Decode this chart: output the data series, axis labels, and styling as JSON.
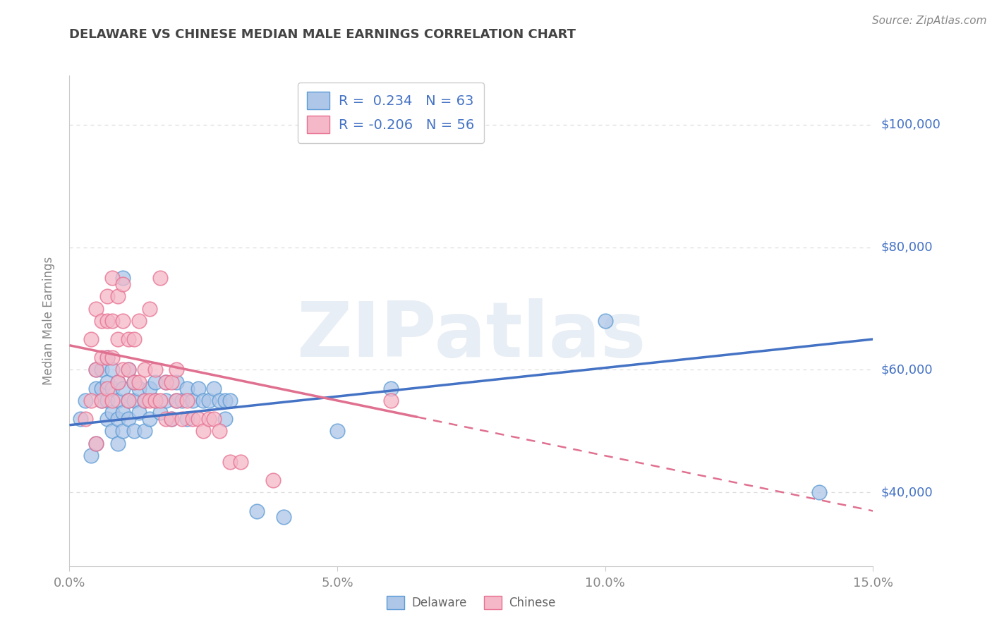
{
  "title": "DELAWARE VS CHINESE MEDIAN MALE EARNINGS CORRELATION CHART",
  "source": "Source: ZipAtlas.com",
  "ylabel": "Median Male Earnings",
  "xlim": [
    0.0,
    0.15
  ],
  "ylim": [
    28000,
    108000
  ],
  "xticks": [
    0.0,
    0.05,
    0.1,
    0.15
  ],
  "xticklabels": [
    "0.0%",
    "5.0%",
    "10.0%",
    "15.0%"
  ],
  "yticks": [
    40000,
    60000,
    80000,
    100000
  ],
  "yticklabels": [
    "$40,000",
    "$60,000",
    "$80,000",
    "$100,000"
  ],
  "delaware_R": 0.234,
  "delaware_N": 63,
  "chinese_R": -0.206,
  "chinese_N": 56,
  "blue_fill": "#aec6e8",
  "blue_edge": "#5b9bd5",
  "pink_fill": "#f4b8c8",
  "pink_edge": "#e87090",
  "blue_line_color": "#4472c4",
  "pink_line_color": "#e07090",
  "legend_text_color": "#4472c4",
  "watermark": "ZIPatlas",
  "watermark_color": "#e8eef5",
  "title_color": "#444444",
  "tick_color": "#888888",
  "grid_color": "#dddddd",
  "source_color": "#888888",
  "blue_line_y0": 51000,
  "blue_line_y1": 65000,
  "pink_line_y0": 64000,
  "pink_line_y1": 37000,
  "pink_dash_split": 0.065,
  "delaware_points": [
    [
      0.002,
      52000
    ],
    [
      0.003,
      55000
    ],
    [
      0.004,
      46000
    ],
    [
      0.005,
      48000
    ],
    [
      0.005,
      57000
    ],
    [
      0.005,
      60000
    ],
    [
      0.006,
      55000
    ],
    [
      0.006,
      57000
    ],
    [
      0.006,
      60000
    ],
    [
      0.007,
      52000
    ],
    [
      0.007,
      55000
    ],
    [
      0.007,
      58000
    ],
    [
      0.007,
      62000
    ],
    [
      0.008,
      50000
    ],
    [
      0.008,
      53000
    ],
    [
      0.008,
      57000
    ],
    [
      0.008,
      60000
    ],
    [
      0.009,
      48000
    ],
    [
      0.009,
      52000
    ],
    [
      0.009,
      55000
    ],
    [
      0.009,
      58000
    ],
    [
      0.01,
      50000
    ],
    [
      0.01,
      53000
    ],
    [
      0.01,
      57000
    ],
    [
      0.01,
      75000
    ],
    [
      0.011,
      52000
    ],
    [
      0.011,
      55000
    ],
    [
      0.011,
      60000
    ],
    [
      0.012,
      50000
    ],
    [
      0.012,
      55000
    ],
    [
      0.012,
      58000
    ],
    [
      0.013,
      53000
    ],
    [
      0.013,
      57000
    ],
    [
      0.014,
      50000
    ],
    [
      0.014,
      55000
    ],
    [
      0.015,
      52000
    ],
    [
      0.015,
      57000
    ],
    [
      0.016,
      55000
    ],
    [
      0.016,
      58000
    ],
    [
      0.017,
      53000
    ],
    [
      0.018,
      55000
    ],
    [
      0.018,
      58000
    ],
    [
      0.019,
      52000
    ],
    [
      0.02,
      55000
    ],
    [
      0.02,
      58000
    ],
    [
      0.021,
      55000
    ],
    [
      0.022,
      52000
    ],
    [
      0.022,
      57000
    ],
    [
      0.023,
      55000
    ],
    [
      0.024,
      57000
    ],
    [
      0.025,
      55000
    ],
    [
      0.026,
      55000
    ],
    [
      0.027,
      57000
    ],
    [
      0.028,
      55000
    ],
    [
      0.029,
      52000
    ],
    [
      0.029,
      55000
    ],
    [
      0.03,
      55000
    ],
    [
      0.035,
      37000
    ],
    [
      0.04,
      36000
    ],
    [
      0.05,
      50000
    ],
    [
      0.06,
      57000
    ],
    [
      0.1,
      68000
    ],
    [
      0.14,
      40000
    ]
  ],
  "chinese_points": [
    [
      0.003,
      52000
    ],
    [
      0.004,
      55000
    ],
    [
      0.004,
      65000
    ],
    [
      0.005,
      48000
    ],
    [
      0.005,
      60000
    ],
    [
      0.005,
      70000
    ],
    [
      0.006,
      55000
    ],
    [
      0.006,
      62000
    ],
    [
      0.006,
      68000
    ],
    [
      0.007,
      57000
    ],
    [
      0.007,
      62000
    ],
    [
      0.007,
      68000
    ],
    [
      0.007,
      72000
    ],
    [
      0.008,
      55000
    ],
    [
      0.008,
      62000
    ],
    [
      0.008,
      68000
    ],
    [
      0.008,
      75000
    ],
    [
      0.009,
      58000
    ],
    [
      0.009,
      65000
    ],
    [
      0.009,
      72000
    ],
    [
      0.01,
      60000
    ],
    [
      0.01,
      68000
    ],
    [
      0.01,
      74000
    ],
    [
      0.011,
      55000
    ],
    [
      0.011,
      60000
    ],
    [
      0.011,
      65000
    ],
    [
      0.012,
      58000
    ],
    [
      0.012,
      65000
    ],
    [
      0.013,
      58000
    ],
    [
      0.013,
      68000
    ],
    [
      0.014,
      55000
    ],
    [
      0.014,
      60000
    ],
    [
      0.015,
      55000
    ],
    [
      0.015,
      70000
    ],
    [
      0.016,
      55000
    ],
    [
      0.016,
      60000
    ],
    [
      0.017,
      55000
    ],
    [
      0.017,
      75000
    ],
    [
      0.018,
      52000
    ],
    [
      0.018,
      58000
    ],
    [
      0.019,
      52000
    ],
    [
      0.019,
      58000
    ],
    [
      0.02,
      55000
    ],
    [
      0.02,
      60000
    ],
    [
      0.021,
      52000
    ],
    [
      0.022,
      55000
    ],
    [
      0.023,
      52000
    ],
    [
      0.024,
      52000
    ],
    [
      0.025,
      50000
    ],
    [
      0.026,
      52000
    ],
    [
      0.027,
      52000
    ],
    [
      0.028,
      50000
    ],
    [
      0.03,
      45000
    ],
    [
      0.032,
      45000
    ],
    [
      0.038,
      42000
    ],
    [
      0.06,
      55000
    ]
  ]
}
